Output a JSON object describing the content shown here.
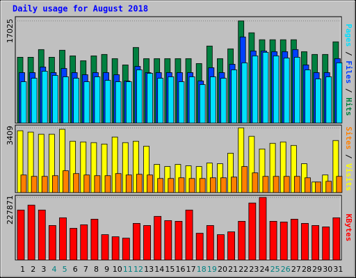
{
  "chart_data": [
    {
      "type": "bar",
      "title": "Daily usage for August 2018",
      "series": [
        {
          "name": "Hits",
          "color": "#008040",
          "values": [
            10960,
            10960,
            12240,
            10960,
            12130,
            11190,
            10380,
            11190,
            11430,
            10730,
            9680,
            12590,
            10730,
            10730,
            10730,
            10730,
            10730,
            9910,
            12830,
            10730,
            12360,
            17025,
            15040,
            13880,
            13880,
            13880,
            13880,
            11890,
            11430,
            11430,
            13530
          ]
        },
        {
          "name": "Files",
          "color": "#0040ff",
          "values": [
            8400,
            8400,
            9330,
            8400,
            9090,
            8400,
            8050,
            8400,
            8400,
            8050,
            7000,
            9440,
            8400,
            8400,
            8400,
            8400,
            8400,
            7000,
            9210,
            8400,
            9790,
            14340,
            12010,
            12010,
            11890,
            11890,
            12240,
            9680,
            8400,
            8400,
            10730
          ]
        },
        {
          "name": "Pages",
          "color": "#00e0ff",
          "values": [
            6880,
            7460,
            8630,
            7930,
            7700,
            7460,
            6880,
            7700,
            7110,
            6880,
            6880,
            8860,
            8280,
            7460,
            7700,
            6880,
            7700,
            6410,
            7700,
            7460,
            8860,
            10030,
            11190,
            11780,
            11190,
            10840,
            10960,
            8860,
            7350,
            7700,
            10030
          ]
        }
      ],
      "ylim": [
        0,
        17025
      ],
      "yticks": [
        17025
      ]
    },
    {
      "type": "bar",
      "series": [
        {
          "name": "Visits",
          "color": "#ffff00",
          "values": [
            3260,
            3186,
            3075,
            3075,
            3335,
            2705,
            2668,
            2631,
            2556,
            2927,
            2631,
            2705,
            2445,
            1482,
            1371,
            1482,
            1408,
            1371,
            1556,
            1519,
            2075,
            3409,
            2964,
            2297,
            2594,
            2668,
            2482,
            1519,
            556,
            926,
            2742
          ]
        },
        {
          "name": "Sites",
          "color": "#ff8000",
          "values": [
            926,
            852,
            852,
            889,
            1149,
            1000,
            926,
            889,
            889,
            1000,
            926,
            963,
            926,
            741,
            741,
            778,
            741,
            741,
            778,
            778,
            815,
            1371,
            1037,
            852,
            852,
            852,
            852,
            778,
            556,
            593,
            852
          ]
        }
      ],
      "ylim": [
        0,
        3409
      ],
      "yticks": [
        3409
      ]
    },
    {
      "type": "bar",
      "categories": [
        "1",
        "2",
        "3",
        "4",
        "5",
        "6",
        "7",
        "8",
        "9",
        "10",
        "11",
        "12",
        "13",
        "14",
        "15",
        "16",
        "17",
        "18",
        "19",
        "20",
        "21",
        "22",
        "23",
        "24",
        "25",
        "26",
        "27",
        "28",
        "29",
        "30",
        "31"
      ],
      "category_colors": [
        "#000000",
        "#000000",
        "#000000",
        "#008080",
        "#008080",
        "#000000",
        "#000000",
        "#000000",
        "#000000",
        "#000000",
        "#008080",
        "#008080",
        "#000000",
        "#000000",
        "#000000",
        "#000000",
        "#000000",
        "#008080",
        "#008080",
        "#000000",
        "#000000",
        "#000000",
        "#000000",
        "#000000",
        "#008080",
        "#008080",
        "#000000",
        "#000000",
        "#000000",
        "#000000",
        "#000000"
      ],
      "series": [
        {
          "name": "KBytes",
          "color": "#ff0000",
          "values": [
            181760,
            199680,
            181760,
            125440,
            153600,
            115200,
            128000,
            148480,
            92160,
            84480,
            79360,
            133120,
            125440,
            158720,
            143360,
            140800,
            181760,
            97280,
            125440,
            92160,
            102400,
            140800,
            207360,
            227871,
            140800,
            138240,
            148480,
            133120,
            125440,
            120320,
            153600
          ]
        }
      ],
      "ylim": [
        0,
        227871
      ],
      "yticks": [
        227871
      ]
    }
  ]
}
